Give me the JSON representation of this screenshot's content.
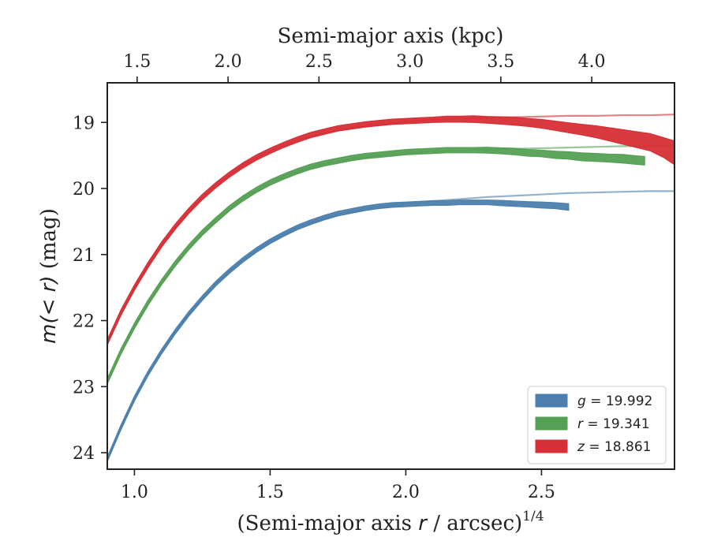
{
  "chart_data": {
    "type": "line",
    "xlabel": "(Semi-major axis r / arcsec)",
    "xlabel_italic_char": "r",
    "xlabel_prefix": "(Semi-major axis ",
    "xlabel_suffix": " / arcsec)",
    "xlabel_superscript": "1/4",
    "ylabel": "m(< r) (mag)",
    "ylabel_math": "m(< r)",
    "ylabel_unit": " (mag)",
    "top_xlabel": "Semi-major axis (kpc)",
    "xlim": [
      0.9,
      2.99
    ],
    "ylim": [
      24.25,
      18.4
    ],
    "y_inverted": true,
    "x_ticks": [
      1.0,
      1.5,
      2.0,
      2.5
    ],
    "x_tick_labels": [
      "1.0",
      "1.5",
      "2.0",
      "2.5"
    ],
    "y_ticks": [
      19,
      20,
      21,
      22,
      23,
      24
    ],
    "y_tick_labels": [
      "19",
      "20",
      "21",
      "22",
      "23",
      "24"
    ],
    "top_ticks_kpc": [
      1.5,
      2.0,
      2.5,
      3.0,
      3.5,
      4.0
    ],
    "top_tick_labels": [
      "1.5",
      "2.0",
      "2.5",
      "3.0",
      "3.5",
      "4.0"
    ],
    "top_ticks_bottom_x": [
      1.01,
      1.345,
      1.68,
      2.015,
      2.35,
      2.685
    ],
    "legend_position": "lower-right",
    "legend": [
      {
        "math": "g",
        "eq": " = 19.992",
        "color": "#4c7fad"
      },
      {
        "math": "r",
        "eq": " = 19.341",
        "color": "#55a054"
      },
      {
        "math": "z",
        "eq": " = 18.861",
        "color": "#d62f36"
      }
    ],
    "series": [
      {
        "band": "g",
        "color": "#4c7fad",
        "total_mag": 19.992,
        "data_x": [
          0.9,
          0.95,
          1.0,
          1.05,
          1.1,
          1.15,
          1.2,
          1.25,
          1.3,
          1.35,
          1.4,
          1.45,
          1.5,
          1.55,
          1.6,
          1.65,
          1.7,
          1.75,
          1.8,
          1.85,
          1.9,
          1.95,
          2.0,
          2.05,
          2.1,
          2.15,
          2.2,
          2.25,
          2.3,
          2.35,
          2.4,
          2.45,
          2.5,
          2.55,
          2.6
        ],
        "data_y": [
          24.1,
          23.62,
          23.18,
          22.8,
          22.47,
          22.17,
          21.9,
          21.66,
          21.44,
          21.25,
          21.08,
          20.93,
          20.8,
          20.69,
          20.59,
          20.51,
          20.44,
          20.38,
          20.34,
          20.3,
          20.27,
          20.25,
          20.24,
          20.23,
          20.22,
          20.22,
          20.21,
          20.21,
          20.21,
          20.22,
          20.23,
          20.24,
          20.25,
          20.26,
          20.28
        ],
        "band_halfwidth": [
          0.035,
          0.035,
          0.035,
          0.035,
          0.035,
          0.035,
          0.035,
          0.035,
          0.035,
          0.035,
          0.035,
          0.035,
          0.035,
          0.035,
          0.035,
          0.035,
          0.035,
          0.035,
          0.035,
          0.035,
          0.035,
          0.035,
          0.035,
          0.035,
          0.035,
          0.035,
          0.035,
          0.035,
          0.035,
          0.04,
          0.04,
          0.04,
          0.045,
          0.045,
          0.05
        ],
        "model_x": [
          0.9,
          1.0,
          1.1,
          1.2,
          1.3,
          1.4,
          1.5,
          1.6,
          1.7,
          1.8,
          1.9,
          2.0,
          2.1,
          2.2,
          2.3,
          2.4,
          2.5,
          2.6,
          2.7,
          2.8,
          2.9,
          2.99
        ],
        "model_y": [
          24.1,
          23.18,
          22.47,
          21.9,
          21.44,
          21.08,
          20.8,
          20.59,
          20.45,
          20.35,
          20.28,
          20.23,
          20.19,
          20.16,
          20.13,
          20.11,
          20.09,
          20.07,
          20.06,
          20.05,
          20.04,
          20.04
        ]
      },
      {
        "band": "r",
        "color": "#55a054",
        "total_mag": 19.341,
        "data_x": [
          0.9,
          0.95,
          1.0,
          1.05,
          1.1,
          1.15,
          1.2,
          1.25,
          1.3,
          1.35,
          1.4,
          1.45,
          1.5,
          1.55,
          1.6,
          1.65,
          1.7,
          1.75,
          1.8,
          1.85,
          1.9,
          1.95,
          2.0,
          2.05,
          2.1,
          2.15,
          2.2,
          2.25,
          2.3,
          2.35,
          2.4,
          2.45,
          2.5,
          2.55,
          2.6,
          2.65,
          2.7,
          2.75,
          2.8,
          2.85,
          2.88
        ],
        "data_y": [
          22.92,
          22.47,
          22.08,
          21.73,
          21.42,
          21.14,
          20.89,
          20.67,
          20.48,
          20.3,
          20.15,
          20.02,
          19.91,
          19.82,
          19.74,
          19.67,
          19.62,
          19.58,
          19.54,
          19.51,
          19.49,
          19.47,
          19.45,
          19.44,
          19.43,
          19.42,
          19.42,
          19.42,
          19.42,
          19.43,
          19.44,
          19.46,
          19.47,
          19.49,
          19.5,
          19.52,
          19.53,
          19.54,
          19.55,
          19.57,
          19.58
        ],
        "band_halfwidth": [
          0.04,
          0.04,
          0.04,
          0.04,
          0.04,
          0.04,
          0.04,
          0.04,
          0.04,
          0.04,
          0.04,
          0.04,
          0.04,
          0.04,
          0.04,
          0.04,
          0.04,
          0.04,
          0.04,
          0.04,
          0.04,
          0.04,
          0.04,
          0.04,
          0.04,
          0.04,
          0.04,
          0.04,
          0.045,
          0.045,
          0.05,
          0.05,
          0.05,
          0.055,
          0.055,
          0.06,
          0.06,
          0.06,
          0.065,
          0.065,
          0.065
        ],
        "model_x": [
          0.9,
          1.0,
          1.1,
          1.2,
          1.3,
          1.4,
          1.5,
          1.6,
          1.7,
          1.8,
          1.9,
          2.0,
          2.1,
          2.2,
          2.3,
          2.4,
          2.5,
          2.6,
          2.7,
          2.8,
          2.9,
          2.99
        ],
        "model_y": [
          22.92,
          22.08,
          21.42,
          20.89,
          20.48,
          20.15,
          19.91,
          19.74,
          19.63,
          19.55,
          19.5,
          19.46,
          19.44,
          19.42,
          19.41,
          19.4,
          19.39,
          19.38,
          19.37,
          19.36,
          19.36,
          19.35
        ]
      },
      {
        "band": "z",
        "color": "#d62f36",
        "total_mag": 18.861,
        "data_x": [
          0.9,
          0.95,
          1.0,
          1.05,
          1.1,
          1.15,
          1.2,
          1.25,
          1.3,
          1.35,
          1.4,
          1.45,
          1.5,
          1.55,
          1.6,
          1.65,
          1.7,
          1.75,
          1.8,
          1.85,
          1.9,
          1.95,
          2.0,
          2.05,
          2.1,
          2.15,
          2.2,
          2.25,
          2.3,
          2.35,
          2.4,
          2.45,
          2.5,
          2.55,
          2.6,
          2.65,
          2.7,
          2.75,
          2.8,
          2.85,
          2.9,
          2.95,
          2.99
        ],
        "data_y": [
          22.33,
          21.88,
          21.5,
          21.16,
          20.85,
          20.58,
          20.34,
          20.13,
          19.95,
          19.79,
          19.65,
          19.53,
          19.43,
          19.34,
          19.26,
          19.19,
          19.14,
          19.09,
          19.06,
          19.03,
          19.01,
          18.99,
          18.98,
          18.97,
          18.96,
          18.95,
          18.95,
          18.95,
          18.96,
          18.97,
          18.98,
          19.0,
          19.02,
          19.05,
          19.08,
          19.11,
          19.14,
          19.18,
          19.22,
          19.26,
          19.3,
          19.38,
          19.46
        ],
        "band_halfwidth": [
          0.04,
          0.04,
          0.04,
          0.04,
          0.04,
          0.04,
          0.04,
          0.04,
          0.04,
          0.04,
          0.04,
          0.04,
          0.04,
          0.04,
          0.04,
          0.04,
          0.04,
          0.04,
          0.04,
          0.04,
          0.04,
          0.04,
          0.04,
          0.04,
          0.04,
          0.045,
          0.045,
          0.05,
          0.05,
          0.055,
          0.06,
          0.06,
          0.065,
          0.07,
          0.075,
          0.08,
          0.09,
          0.1,
          0.11,
          0.12,
          0.13,
          0.15,
          0.18
        ],
        "model_x": [
          0.9,
          1.0,
          1.1,
          1.2,
          1.3,
          1.4,
          1.5,
          1.6,
          1.7,
          1.8,
          1.9,
          2.0,
          2.1,
          2.2,
          2.3,
          2.4,
          2.5,
          2.6,
          2.7,
          2.8,
          2.9,
          2.99
        ],
        "model_y": [
          22.33,
          21.5,
          20.85,
          20.34,
          19.95,
          19.65,
          19.43,
          19.27,
          19.16,
          19.08,
          19.03,
          18.99,
          18.96,
          18.94,
          18.93,
          18.92,
          18.91,
          18.9,
          18.9,
          18.89,
          18.89,
          18.88
        ]
      }
    ]
  }
}
